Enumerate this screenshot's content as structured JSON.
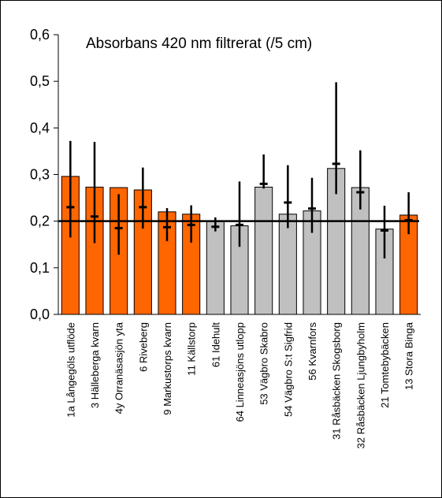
{
  "chart_data": {
    "type": "bar",
    "title": "Absorbans 420 nm filtrerat (/5 cm)",
    "xlabel": "",
    "ylabel": "",
    "ylim": [
      0,
      0.6
    ],
    "yticks": [
      "0,0",
      "0,1",
      "0,2",
      "0,3",
      "0,4",
      "0,5",
      "0,6"
    ],
    "grid": false,
    "legend": "none",
    "reference_line": 0.2,
    "colors": {
      "orange": "#ff6600",
      "gray": "#c0c0c0",
      "line": "#000000"
    },
    "categories": [
      "1a Långegöls utflöde",
      "3 Hälleberga kvarn",
      "4y Orranäsasjön yta",
      "6 Riveberg",
      "9 Markustorps kvarn",
      "11 Källstorp",
      "61 Idehult",
      "64 Linneasjöns utlopp",
      "53 Vägbro Skabro",
      "54 Vägbro S:t Sigfrid",
      "56 Kvarnfors",
      "31 Råsbäcken Skogsborg",
      "32 Råsbäcken Ljungbyholm",
      "21 Tomtebybäcken",
      "13 Stora Binga"
    ],
    "bar_colors": [
      "orange",
      "orange",
      "orange",
      "orange",
      "orange",
      "orange",
      "gray",
      "gray",
      "gray",
      "gray",
      "gray",
      "gray",
      "gray",
      "gray",
      "orange"
    ],
    "values": [
      0.296,
      0.273,
      0.272,
      0.267,
      0.22,
      0.215,
      0.2,
      0.19,
      0.273,
      0.215,
      0.222,
      0.313,
      0.272,
      0.183,
      0.213
    ],
    "median": [
      0.23,
      0.21,
      0.185,
      0.23,
      0.187,
      0.192,
      0.188,
      0.192,
      0.28,
      0.24,
      0.227,
      0.323,
      0.262,
      0.18,
      0.202
    ],
    "err_low": [
      0.165,
      0.153,
      0.128,
      0.184,
      0.157,
      0.154,
      0.178,
      0.145,
      0.27,
      0.185,
      0.175,
      0.258,
      0.225,
      0.12,
      0.172
    ],
    "err_high": [
      0.372,
      0.37,
      0.258,
      0.315,
      0.228,
      0.234,
      0.208,
      0.285,
      0.343,
      0.32,
      0.293,
      0.498,
      0.352,
      0.233,
      0.262
    ]
  }
}
